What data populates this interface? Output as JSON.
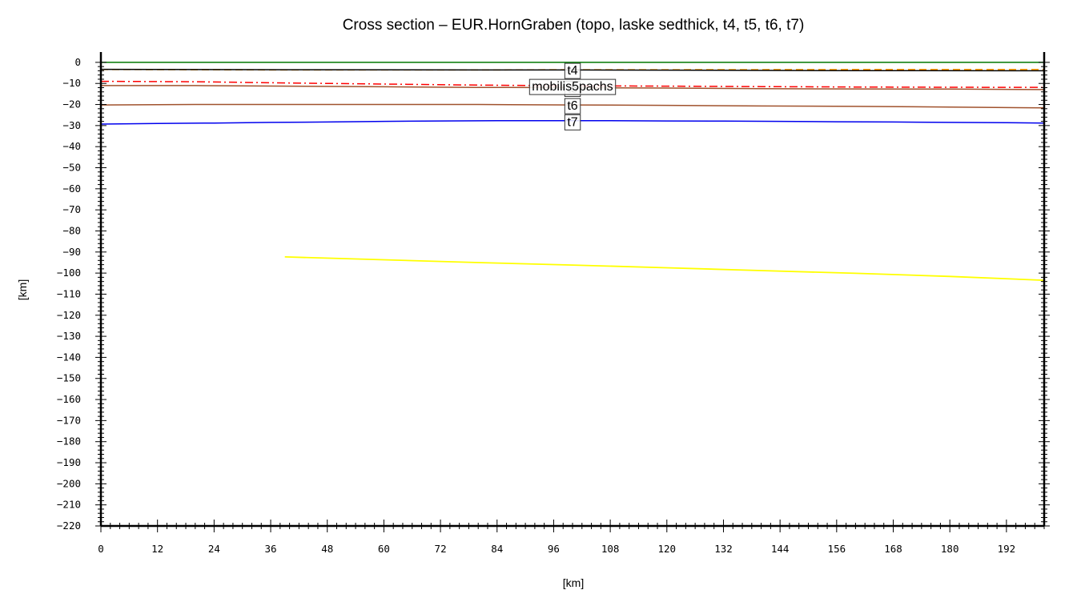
{
  "chart_data": {
    "type": "line",
    "title": "Cross section – EUR.HornGraben (topo, laske sedthick, t4, t5, t6, t7)",
    "xlabel": "[km]",
    "ylabel": "[km]",
    "xlim": [
      0,
      200
    ],
    "ylim": [
      -220,
      3
    ],
    "x_ticks": [
      0,
      12,
      24,
      36,
      48,
      60,
      72,
      84,
      96,
      108,
      120,
      132,
      144,
      156,
      168,
      180,
      192
    ],
    "y_ticks": [
      0,
      -10,
      -20,
      -30,
      -40,
      -50,
      -60,
      -70,
      -80,
      -90,
      -100,
      -110,
      -120,
      -130,
      -140,
      -150,
      -160,
      -170,
      -180,
      -190,
      -200,
      -210,
      -220
    ],
    "grid": false,
    "series": [
      {
        "color": "#007700",
        "dash": "",
        "x": [
          0,
          200
        ],
        "y": [
          0,
          0
        ]
      },
      {
        "color": "#ff9900",
        "dash": "9,5",
        "x": [
          0,
          40,
          80,
          100,
          120,
          160,
          200
        ],
        "y": [
          -3.4,
          -3.6,
          -3.6,
          -3.5,
          -3.5,
          -3.4,
          -3.4
        ]
      },
      {
        "name": "t4",
        "color": "#000000",
        "dash": "",
        "x": [
          0,
          40,
          80,
          100,
          120,
          160,
          200
        ],
        "y": [
          -3.3,
          -3.5,
          -3.6,
          -3.6,
          -3.7,
          -3.9,
          -4.0
        ]
      },
      {
        "name": "mobilis5pachs",
        "color": "#ff0000",
        "dash": "10,4,2,4",
        "x": [
          0,
          20,
          40,
          60,
          80,
          100,
          120,
          140,
          160,
          180,
          200
        ],
        "y": [
          -9.0,
          -9.2,
          -9.8,
          -10.3,
          -10.8,
          -11.1,
          -11.3,
          -11.5,
          -11.7,
          -11.8,
          -11.9
        ]
      },
      {
        "name": "t5",
        "color": "#a0522d",
        "dash": "",
        "x": [
          0,
          20,
          40,
          60,
          80,
          100,
          120,
          140,
          160,
          180,
          200
        ],
        "y": [
          -11.0,
          -11.0,
          -11.3,
          -11.6,
          -11.9,
          -12.0,
          -12.2,
          -12.5,
          -12.6,
          -12.7,
          -12.9
        ]
      },
      {
        "name": "t6",
        "color": "#a0522d",
        "dash": "",
        "x": [
          0,
          20,
          40,
          60,
          80,
          100,
          120,
          140,
          160,
          180,
          200
        ],
        "y": [
          -20.2,
          -20.0,
          -20.0,
          -20.0,
          -20.0,
          -20.2,
          -20.4,
          -20.7,
          -20.9,
          -21.2,
          -21.6
        ]
      },
      {
        "name": "t7",
        "color": "#0000ee",
        "dash": "",
        "x": [
          0,
          12,
          24,
          36,
          48,
          60,
          72,
          84,
          96,
          108,
          120,
          132,
          144,
          156,
          168,
          180,
          192,
          200
        ],
        "y": [
          -29.3,
          -29.0,
          -28.8,
          -28.5,
          -28.3,
          -28.0,
          -27.8,
          -27.7,
          -27.7,
          -27.7,
          -27.8,
          -27.9,
          -28.0,
          -28.2,
          -28.3,
          -28.5,
          -28.6,
          -28.8
        ]
      },
      {
        "color": "#ffff00",
        "dash": "",
        "x": [
          39,
          60,
          80,
          100,
          120,
          140,
          160,
          180,
          200
        ],
        "y": [
          -92.3,
          -93.7,
          -95.0,
          -96.2,
          -97.5,
          -98.8,
          -100.1,
          -101.6,
          -103.4
        ]
      }
    ],
    "labels": [
      {
        "text": "t4",
        "x": 100,
        "y": -3.5
      },
      {
        "text": "t5",
        "x": 100,
        "y": -12.0
      },
      {
        "text": "mobilis5pachs",
        "x": 100,
        "y": -11.1
      },
      {
        "text": "t6",
        "x": 100,
        "y": -20.2
      },
      {
        "text": "t7",
        "x": 100,
        "y": -27.9
      }
    ]
  }
}
